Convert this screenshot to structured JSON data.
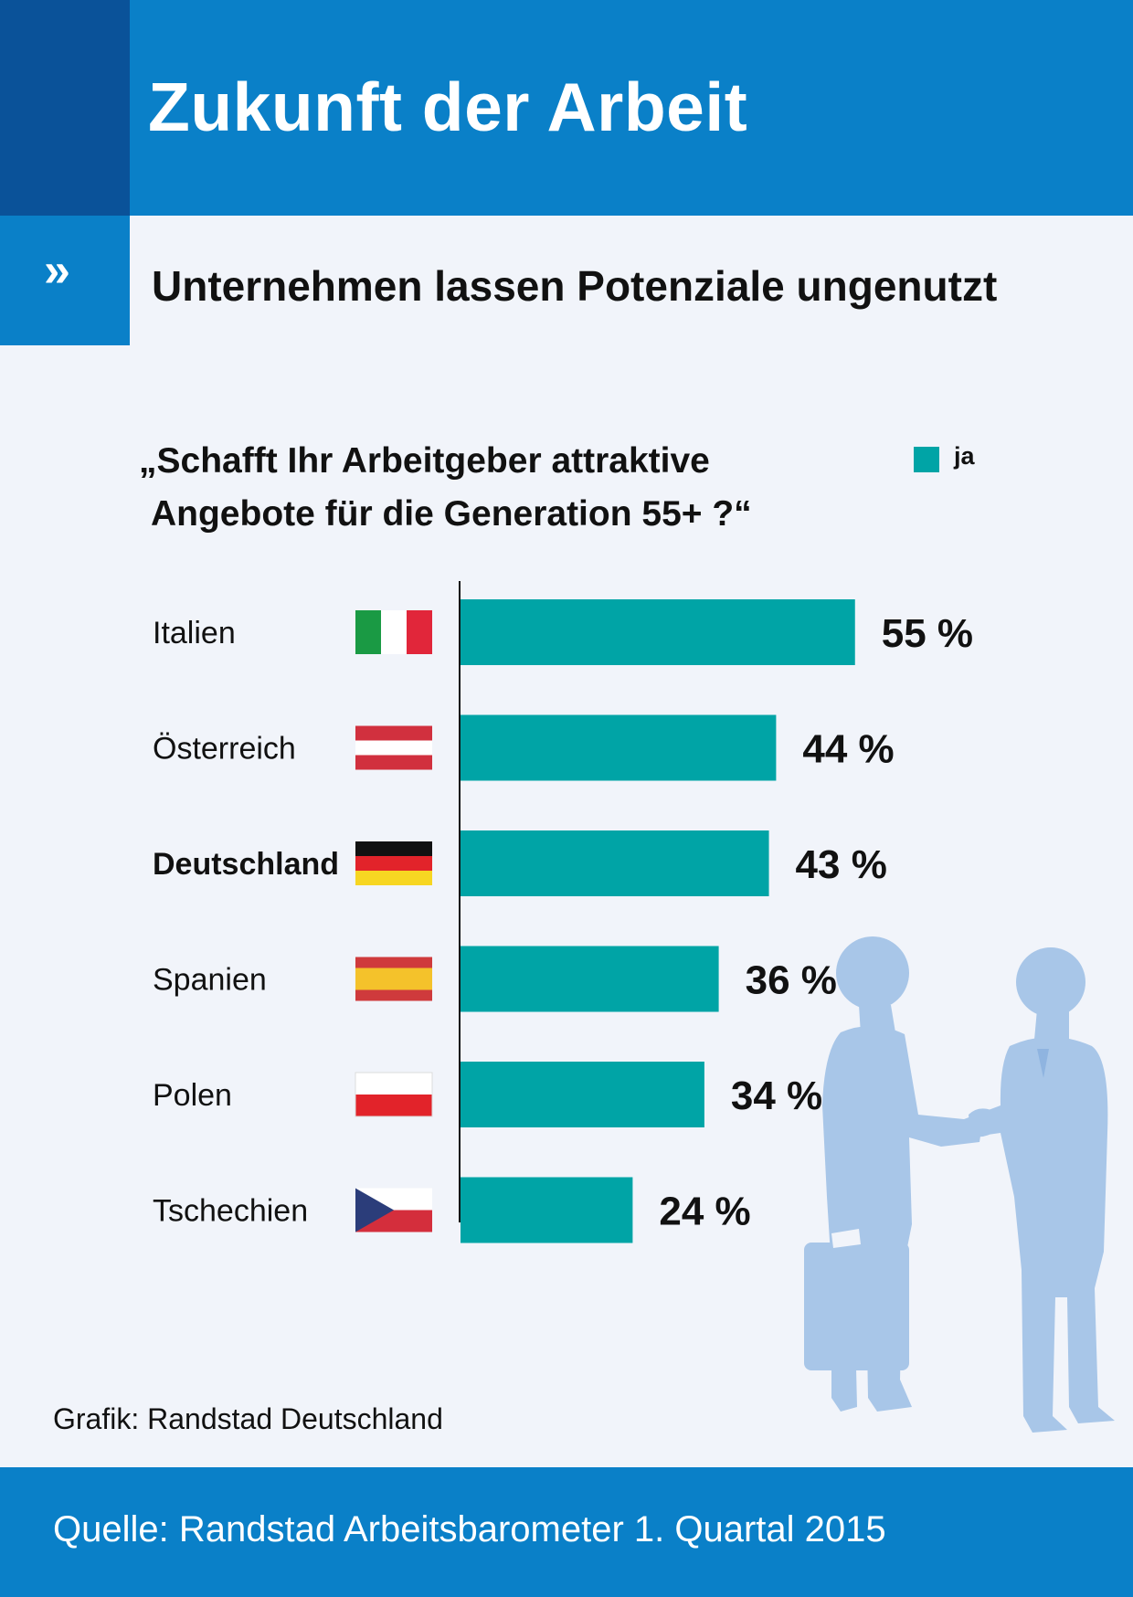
{
  "header": {
    "title": "Zukunft der Arbeit"
  },
  "subheader": {
    "chevron": "»",
    "title": "Unternehmen lassen Potenziale ungenutzt"
  },
  "chart_data": {
    "type": "bar",
    "orientation": "horizontal",
    "title": "„Schafft Ihr Arbeitgeber attraktive Angebote für die Generation 55+ ?“",
    "title_lines": [
      "„Schafft Ihr Arbeitgeber attraktive",
      "Angebote für die Generation 55+ ?“"
    ],
    "categories": [
      "Italien",
      "Österreich",
      "Deutschland",
      "Spanien",
      "Polen",
      "Tschechien"
    ],
    "highlighted_category": "Deutschland",
    "series": [
      {
        "name": "ja",
        "values": [
          55,
          44,
          43,
          36,
          34,
          24
        ],
        "color": "#00a4a6"
      }
    ],
    "data_labels": [
      "55 %",
      "44 %",
      "43 %",
      "36 %",
      "34 %",
      "24 %"
    ],
    "unit": "%",
    "legend": {
      "position": "top-right",
      "label": "ja"
    },
    "flags": [
      "italy-flag",
      "austria-flag",
      "germany-flag",
      "spain-flag",
      "poland-flag",
      "czech-flag"
    ]
  },
  "credit": "Grafik: Randstad Deutschland",
  "footer": {
    "source": "Quelle: Randstad Arbeitsbarometer 1. Quartal 2015"
  },
  "colors": {
    "header_blue": "#0a80c8",
    "header_dark": "#0a5299",
    "bar": "#00a4a6",
    "background": "#f1f4fa",
    "silhouette": "#a8c6e8"
  }
}
